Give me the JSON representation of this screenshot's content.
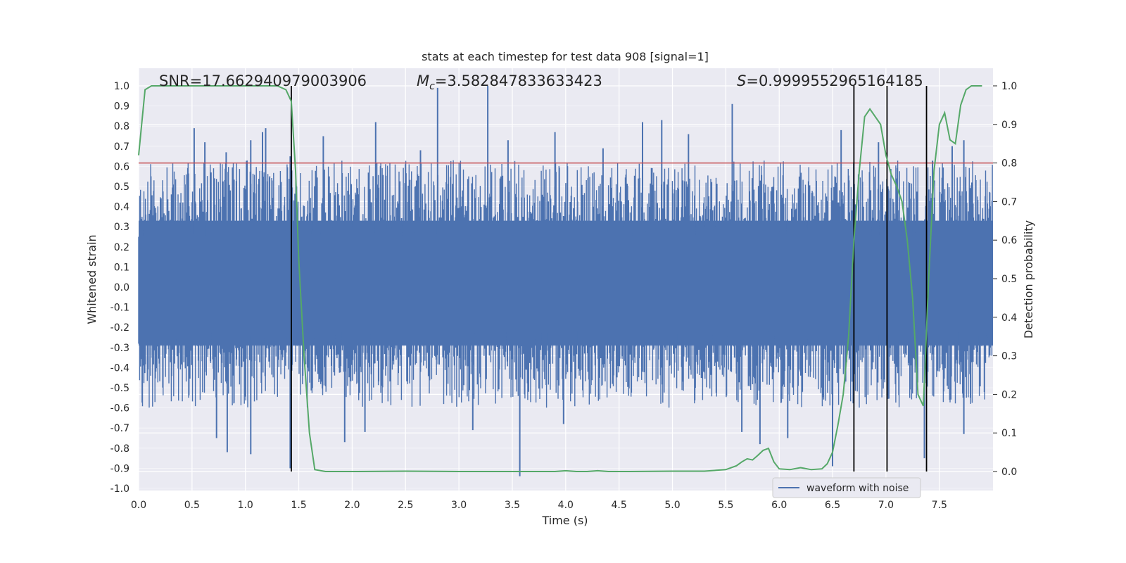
{
  "chart_data": {
    "type": "line",
    "title": "stats at each timestep for test data 908 [signal=1]",
    "xlabel": "Time (s)",
    "ylabel": "Whitened strain",
    "ylabel_right": "Detection probability",
    "xlim": [
      0,
      8.0
    ],
    "ylim": [
      -1.0,
      1.1
    ],
    "ylim_right": [
      -0.05,
      1.05
    ],
    "grid": true,
    "legend_position": "lower-right",
    "xticks": [
      "0.0",
      "0.5",
      "1.0",
      "1.5",
      "2.0",
      "2.5",
      "3.0",
      "3.5",
      "4.0",
      "4.5",
      "5.0",
      "5.5",
      "6.0",
      "6.5",
      "7.0",
      "7.5"
    ],
    "yticks_left": [
      "1.0",
      "0.9",
      "0.8",
      "0.7",
      "0.6",
      "0.5",
      "0.4",
      "0.3",
      "0.2",
      "0.1",
      "0.0",
      "-0.1",
      "-0.2",
      "-0.3",
      "-0.4",
      "-0.5",
      "-0.6",
      "-0.7",
      "-0.8",
      "-0.9",
      "-1.0"
    ],
    "yticks_right": [
      "1.0",
      "0.9",
      "0.8",
      "0.7",
      "0.6",
      "0.5",
      "0.4",
      "0.3",
      "0.2",
      "0.1",
      "0.0"
    ],
    "annotations": {
      "snr": "SNR=17.662940979003906",
      "mc_symbol": "M",
      "mc_sub": "c",
      "mc_value": "=3.582847833633423",
      "s_symbol": "S",
      "s_value": "=0.9999552965164185"
    },
    "threshold": 0.8,
    "vlines_x": [
      1.43,
      6.7,
      7.01,
      7.38
    ],
    "series": [
      {
        "name": "waveform with noise",
        "color": "#4c72b0",
        "description_envelope": {
          "core_low": -0.35,
          "core_high": 0.45
        },
        "spikes": [
          {
            "x": 0.52,
            "y": 0.79
          },
          {
            "x": 0.62,
            "y": 0.72
          },
          {
            "x": 0.82,
            "y": 0.67
          },
          {
            "x": 1.05,
            "y": 0.73
          },
          {
            "x": 1.16,
            "y": 0.77
          },
          {
            "x": 1.19,
            "y": 0.79
          },
          {
            "x": 1.42,
            "y": 0.65
          },
          {
            "x": 1.73,
            "y": 0.75
          },
          {
            "x": 2.22,
            "y": 0.82
          },
          {
            "x": 2.64,
            "y": 0.68
          },
          {
            "x": 2.8,
            "y": 0.99
          },
          {
            "x": 3.27,
            "y": 1.0
          },
          {
            "x": 3.46,
            "y": 0.73
          },
          {
            "x": 3.9,
            "y": 0.77
          },
          {
            "x": 4.35,
            "y": 0.69
          },
          {
            "x": 4.72,
            "y": 0.82
          },
          {
            "x": 4.9,
            "y": 0.83
          },
          {
            "x": 5.15,
            "y": 0.76
          },
          {
            "x": 5.56,
            "y": 0.91
          },
          {
            "x": 6.58,
            "y": 0.78
          },
          {
            "x": 6.93,
            "y": 0.72
          },
          {
            "x": 7.62,
            "y": 0.7
          },
          {
            "x": 7.73,
            "y": 0.73
          },
          {
            "x": 0.73,
            "y": -0.75
          },
          {
            "x": 0.83,
            "y": -0.82
          },
          {
            "x": 1.05,
            "y": -0.83
          },
          {
            "x": 1.42,
            "y": -0.9
          },
          {
            "x": 1.93,
            "y": -0.77
          },
          {
            "x": 2.12,
            "y": -0.72
          },
          {
            "x": 3.13,
            "y": -0.71
          },
          {
            "x": 3.57,
            "y": -0.94
          },
          {
            "x": 3.98,
            "y": -0.68
          },
          {
            "x": 5.65,
            "y": -0.72
          },
          {
            "x": 5.82,
            "y": -0.78
          },
          {
            "x": 6.08,
            "y": -0.75
          },
          {
            "x": 6.5,
            "y": -0.89
          },
          {
            "x": 7.36,
            "y": -0.85
          },
          {
            "x": 7.73,
            "y": -0.73
          }
        ]
      },
      {
        "name": "",
        "color": "#55a868",
        "axis": "right",
        "x": [
          0.0,
          0.06,
          0.12,
          0.5,
          1.0,
          1.3,
          1.38,
          1.43,
          1.47,
          1.5,
          1.55,
          1.6,
          1.65,
          1.75,
          2.0,
          2.5,
          3.0,
          3.5,
          3.9,
          4.0,
          4.1,
          4.2,
          4.3,
          4.4,
          4.6,
          5.0,
          5.3,
          5.5,
          5.6,
          5.65,
          5.7,
          5.75,
          5.8,
          5.85,
          5.9,
          5.95,
          6.0,
          6.1,
          6.2,
          6.3,
          6.4,
          6.45,
          6.5,
          6.55,
          6.6,
          6.65,
          6.7,
          6.75,
          6.8,
          6.85,
          6.9,
          6.95,
          7.0,
          7.05,
          7.1,
          7.15,
          7.2,
          7.25,
          7.3,
          7.35,
          7.4,
          7.45,
          7.5,
          7.55,
          7.6,
          7.65,
          7.7,
          7.75,
          7.8,
          7.9
        ],
        "y": [
          0.82,
          0.99,
          1.0,
          1.0,
          1.0,
          1.0,
          0.99,
          0.96,
          0.78,
          0.55,
          0.3,
          0.1,
          0.005,
          0.0,
          0.0,
          0.001,
          0.0,
          0.0,
          0.0,
          0.002,
          0.0,
          0.0,
          0.002,
          0.0,
          0.0,
          0.001,
          0.001,
          0.005,
          0.015,
          0.025,
          0.033,
          0.03,
          0.042,
          0.055,
          0.06,
          0.025,
          0.007,
          0.005,
          0.01,
          0.005,
          0.007,
          0.02,
          0.05,
          0.12,
          0.2,
          0.35,
          0.6,
          0.78,
          0.92,
          0.94,
          0.92,
          0.9,
          0.82,
          0.77,
          0.74,
          0.7,
          0.6,
          0.45,
          0.2,
          0.17,
          0.5,
          0.78,
          0.9,
          0.93,
          0.86,
          0.85,
          0.95,
          0.99,
          1.0,
          1.0
        ]
      }
    ],
    "red_line_label": ""
  },
  "legend": {
    "entries": [
      {
        "label": "waveform with noise",
        "color": "#4c72b0"
      }
    ]
  }
}
